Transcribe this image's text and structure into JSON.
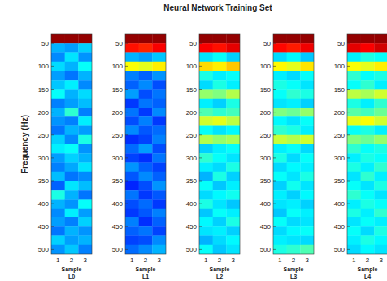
{
  "chart_data": {
    "type": "heatmap",
    "title": "Neural Network Training Set",
    "y_label": "Frequency (Hz)",
    "ylim": [
      30,
      510
    ],
    "yticks": [
      50,
      100,
      150,
      200,
      250,
      300,
      350,
      400,
      450,
      500
    ],
    "rows": [
      40,
      60,
      80,
      100,
      120,
      140,
      160,
      180,
      200,
      220,
      240,
      260,
      280,
      300,
      320,
      340,
      360,
      380,
      400,
      420,
      440,
      460,
      480,
      500
    ],
    "color_range": [
      0,
      1
    ],
    "panels": [
      {
        "x_label": "Sample",
        "name": "L0",
        "categories": [
          "1",
          "2",
          "3"
        ],
        "cells": [
          [
            0.98,
            0.3,
            0.26,
            0.34,
            0.28,
            0.32,
            0.38,
            0.25,
            0.3,
            0.27,
            0.24,
            0.33,
            0.36,
            0.28,
            0.25,
            0.31,
            0.22,
            0.4,
            0.3,
            0.26,
            0.28,
            0.24,
            0.33,
            0.27
          ],
          [
            0.98,
            0.28,
            0.35,
            0.3,
            0.24,
            0.36,
            0.3,
            0.28,
            0.42,
            0.25,
            0.3,
            0.26,
            0.38,
            0.33,
            0.29,
            0.24,
            0.35,
            0.3,
            0.27,
            0.36,
            0.25,
            0.3,
            0.28,
            0.32
          ],
          [
            0.98,
            0.33,
            0.27,
            0.38,
            0.3,
            0.26,
            0.34,
            0.31,
            0.25,
            0.36,
            0.28,
            0.4,
            0.27,
            0.3,
            0.35,
            0.26,
            0.31,
            0.24,
            0.38,
            0.28,
            0.33,
            0.27,
            0.3,
            0.25
          ]
        ]
      },
      {
        "x_label": "Sample",
        "name": "L1",
        "categories": [
          "1",
          "2",
          "3"
        ],
        "cells": [
          [
            0.98,
            0.86,
            0.3,
            0.62,
            0.25,
            0.22,
            0.28,
            0.18,
            0.24,
            0.2,
            0.26,
            0.17,
            0.23,
            0.19,
            0.27,
            0.21,
            0.16,
            0.24,
            0.2,
            0.18,
            0.25,
            0.22,
            0.19,
            0.23
          ],
          [
            0.98,
            0.84,
            0.28,
            0.6,
            0.22,
            0.26,
            0.2,
            0.24,
            0.18,
            0.25,
            0.21,
            0.19,
            0.28,
            0.17,
            0.22,
            0.26,
            0.2,
            0.18,
            0.23,
            0.21,
            0.17,
            0.24,
            0.2,
            0.26
          ],
          [
            0.98,
            0.88,
            0.32,
            0.64,
            0.27,
            0.2,
            0.24,
            0.22,
            0.26,
            0.18,
            0.23,
            0.25,
            0.2,
            0.24,
            0.19,
            0.22,
            0.27,
            0.21,
            0.18,
            0.25,
            0.22,
            0.19,
            0.26,
            0.3
          ]
        ]
      },
      {
        "x_label": "Sample",
        "name": "L2",
        "categories": [
          "1",
          "2",
          "3"
        ],
        "cells": [
          [
            0.98,
            0.88,
            0.35,
            0.66,
            0.4,
            0.34,
            0.52,
            0.36,
            0.45,
            0.58,
            0.38,
            0.55,
            0.33,
            0.42,
            0.36,
            0.3,
            0.38,
            0.34,
            0.4,
            0.32,
            0.37,
            0.35,
            0.3,
            0.38
          ],
          [
            0.98,
            0.86,
            0.38,
            0.64,
            0.36,
            0.4,
            0.5,
            0.33,
            0.42,
            0.6,
            0.35,
            0.52,
            0.36,
            0.38,
            0.34,
            0.4,
            0.32,
            0.37,
            0.35,
            0.38,
            0.33,
            0.36,
            0.34,
            0.32
          ],
          [
            0.98,
            0.9,
            0.33,
            0.68,
            0.38,
            0.36,
            0.55,
            0.4,
            0.44,
            0.56,
            0.37,
            0.54,
            0.38,
            0.35,
            0.4,
            0.33,
            0.36,
            0.39,
            0.32,
            0.36,
            0.4,
            0.33,
            0.37,
            0.35
          ]
        ]
      },
      {
        "x_label": "Sample",
        "name": "L3",
        "categories": [
          "1",
          "2",
          "3"
        ],
        "cells": [
          [
            0.98,
            0.87,
            0.34,
            0.63,
            0.36,
            0.4,
            0.38,
            0.35,
            0.5,
            0.37,
            0.42,
            0.57,
            0.36,
            0.4,
            0.34,
            0.38,
            0.33,
            0.36,
            0.35,
            0.32,
            0.38,
            0.34,
            0.36,
            0.4
          ],
          [
            0.98,
            0.85,
            0.37,
            0.6,
            0.34,
            0.38,
            0.42,
            0.36,
            0.48,
            0.35,
            0.4,
            0.55,
            0.38,
            0.34,
            0.37,
            0.35,
            0.39,
            0.33,
            0.36,
            0.38,
            0.34,
            0.37,
            0.35,
            0.42
          ],
          [
            0.98,
            0.89,
            0.32,
            0.65,
            0.38,
            0.35,
            0.4,
            0.33,
            0.52,
            0.38,
            0.36,
            0.58,
            0.34,
            0.38,
            0.36,
            0.4,
            0.35,
            0.37,
            0.33,
            0.36,
            0.35,
            0.38,
            0.34,
            0.45
          ]
        ]
      },
      {
        "x_label": "Sample",
        "name": "L4",
        "categories": [
          "1",
          "2",
          "3"
        ],
        "cells": [
          [
            0.98,
            0.9,
            0.36,
            0.62,
            0.42,
            0.38,
            0.56,
            0.4,
            0.46,
            0.6,
            0.38,
            0.5,
            0.42,
            0.36,
            0.4,
            0.35,
            0.38,
            0.42,
            0.36,
            0.4,
            0.35,
            0.38,
            0.36,
            0.34
          ],
          [
            0.98,
            0.88,
            0.4,
            0.6,
            0.38,
            0.42,
            0.54,
            0.36,
            0.44,
            0.62,
            0.4,
            0.48,
            0.38,
            0.4,
            0.36,
            0.42,
            0.35,
            0.38,
            0.4,
            0.36,
            0.38,
            0.34,
            0.4,
            0.37
          ],
          [
            0.98,
            0.92,
            0.38,
            0.64,
            0.4,
            0.36,
            0.58,
            0.42,
            0.48,
            0.58,
            0.36,
            0.52,
            0.4,
            0.38,
            0.42,
            0.36,
            0.4,
            0.35,
            0.38,
            0.42,
            0.36,
            0.4,
            0.37,
            0.35
          ]
        ]
      }
    ]
  }
}
